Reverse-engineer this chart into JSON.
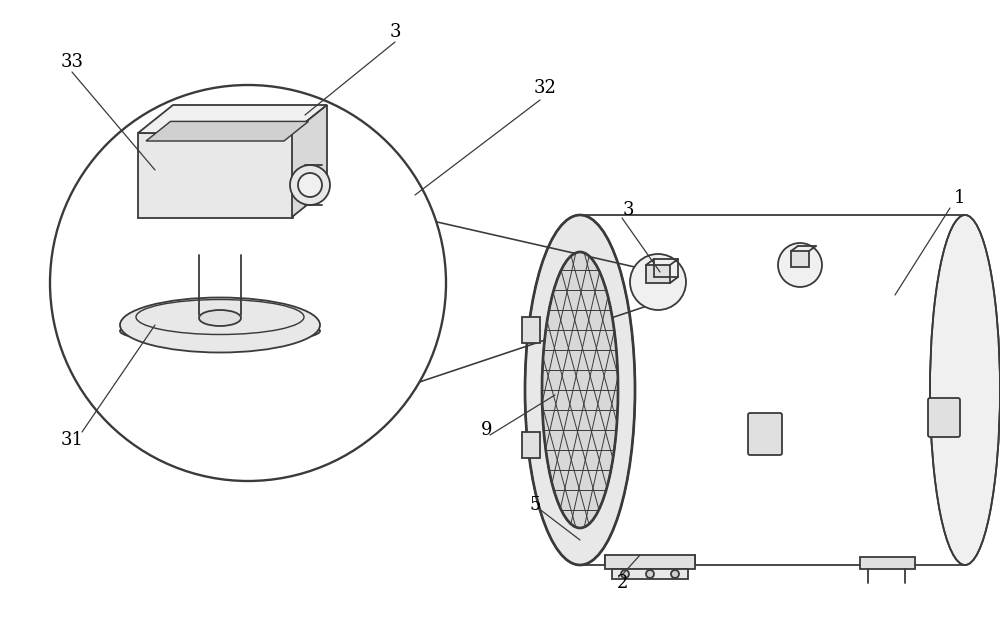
{
  "bg_color": "#ffffff",
  "line_color": "#3a3a3a",
  "line_width": 1.3,
  "fig_width": 10.0,
  "fig_height": 6.22,
  "dpi": 100
}
